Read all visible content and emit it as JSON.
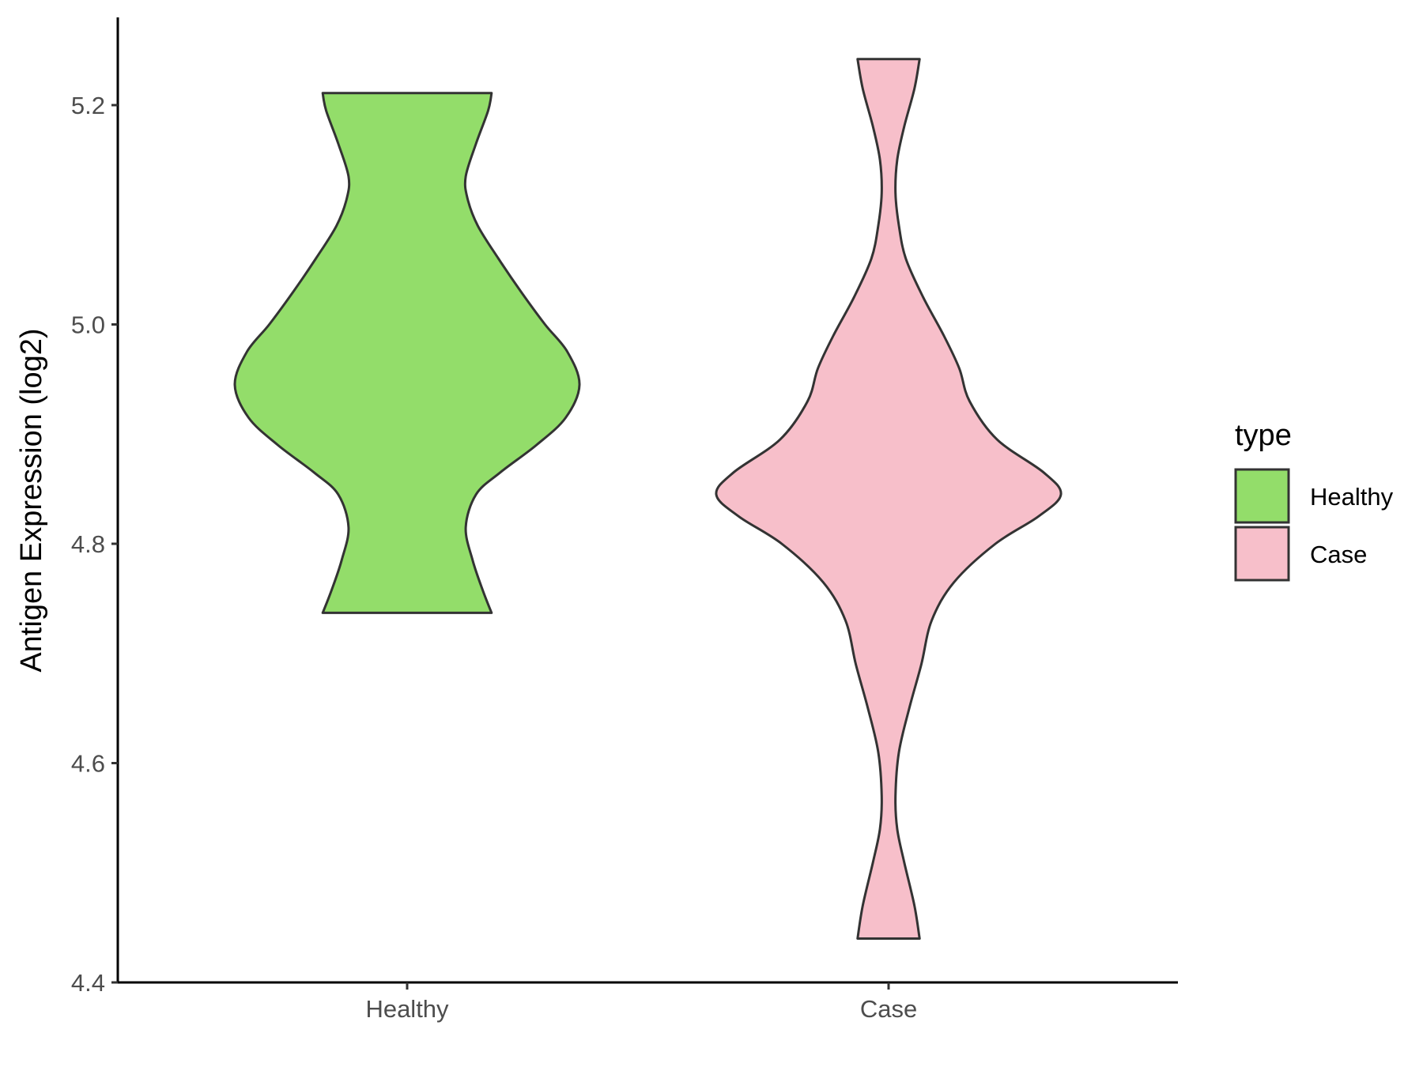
{
  "chart_data": {
    "type": "violin",
    "ylabel": "Antigen Expression (log2)",
    "xlabel": "",
    "ylim": [
      4.4,
      5.28
    ],
    "y_ticks": [
      "4.4",
      "4.6",
      "4.8",
      "5.0",
      "5.2"
    ],
    "categories": [
      "Healthy",
      "Case"
    ],
    "legend": {
      "title": "type",
      "position": "right",
      "items": [
        {
          "label": "Healthy",
          "color": "#93dd6a"
        },
        {
          "label": "Case",
          "color": "#f7bfca"
        }
      ]
    },
    "series": [
      {
        "name": "Healthy",
        "color": "#93dd6a",
        "min": 4.737,
        "max": 5.211,
        "density_profile": [
          [
            4.737,
            0.49
          ],
          [
            4.757,
            0.44
          ],
          [
            4.785,
            0.38
          ],
          [
            4.815,
            0.34
          ],
          [
            4.845,
            0.4
          ],
          [
            4.865,
            0.54
          ],
          [
            4.89,
            0.75
          ],
          [
            4.915,
            0.92
          ],
          [
            4.945,
            1.0
          ],
          [
            4.975,
            0.93
          ],
          [
            5.0,
            0.8
          ],
          [
            5.03,
            0.66
          ],
          [
            5.06,
            0.53
          ],
          [
            5.09,
            0.41
          ],
          [
            5.115,
            0.35
          ],
          [
            5.135,
            0.34
          ],
          [
            5.165,
            0.4
          ],
          [
            5.195,
            0.47
          ],
          [
            5.211,
            0.49
          ]
        ]
      },
      {
        "name": "Case",
        "color": "#f7bfca",
        "min": 4.44,
        "max": 5.242,
        "density_profile": [
          [
            4.44,
            0.18
          ],
          [
            4.47,
            0.15
          ],
          [
            4.51,
            0.09
          ],
          [
            4.54,
            0.05
          ],
          [
            4.57,
            0.04
          ],
          [
            4.61,
            0.06
          ],
          [
            4.65,
            0.12
          ],
          [
            4.69,
            0.19
          ],
          [
            4.73,
            0.25
          ],
          [
            4.765,
            0.38
          ],
          [
            4.8,
            0.62
          ],
          [
            4.825,
            0.87
          ],
          [
            4.845,
            1.0
          ],
          [
            4.865,
            0.9
          ],
          [
            4.895,
            0.63
          ],
          [
            4.93,
            0.47
          ],
          [
            4.96,
            0.41
          ],
          [
            4.99,
            0.32
          ],
          [
            5.025,
            0.2
          ],
          [
            5.06,
            0.1
          ],
          [
            5.09,
            0.06
          ],
          [
            5.12,
            0.04
          ],
          [
            5.15,
            0.05
          ],
          [
            5.18,
            0.09
          ],
          [
            5.215,
            0.15
          ],
          [
            5.242,
            0.18
          ]
        ]
      }
    ]
  }
}
